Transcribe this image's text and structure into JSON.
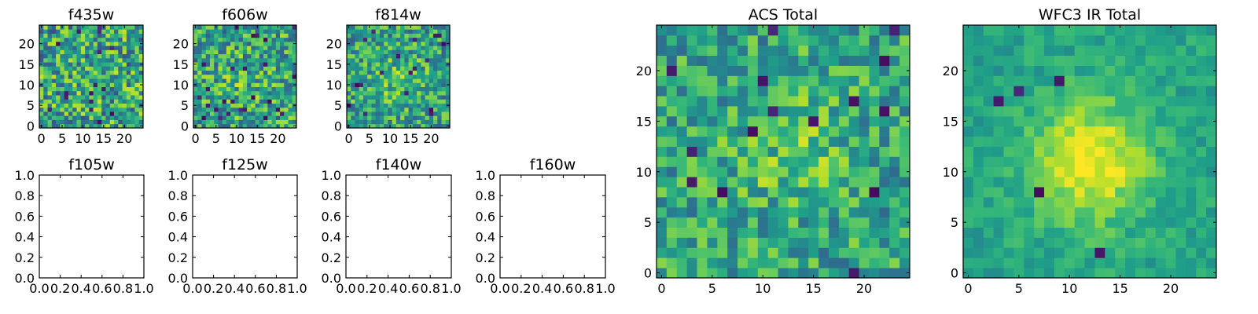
{
  "chart_data": {
    "type": "heatmap",
    "colormap": "viridis",
    "colors": {
      "viridis": [
        "#440154",
        "#482878",
        "#3e4989",
        "#31688e",
        "#26828e",
        "#1f9e89",
        "#35b779",
        "#6ece58",
        "#b5de2b",
        "#fde725"
      ],
      "axes": "#000000",
      "background": "#ffffff"
    },
    "panels": [
      {
        "id": "f435w",
        "title": "f435w",
        "kind": "image",
        "grid": 25,
        "peak": [
          12,
          11
        ],
        "peak_strength": 0.05,
        "noise": 0.9,
        "seed": 11,
        "xlim": [
          -0.5,
          24.5
        ],
        "ylim": [
          -0.5,
          24.5
        ],
        "xticks": [
          0,
          5,
          10,
          15,
          20
        ],
        "yticks": [
          0,
          5,
          10,
          15,
          20
        ]
      },
      {
        "id": "f606w",
        "title": "f606w",
        "kind": "image",
        "grid": 25,
        "peak": [
          12,
          11
        ],
        "peak_strength": 0.15,
        "noise": 0.8,
        "seed": 22,
        "xlim": [
          -0.5,
          24.5
        ],
        "ylim": [
          -0.5,
          24.5
        ],
        "xticks": [
          0,
          5,
          10,
          15,
          20
        ],
        "yticks": [
          0,
          5,
          10,
          15,
          20
        ]
      },
      {
        "id": "f814w",
        "title": "f814w",
        "kind": "image",
        "grid": 25,
        "peak": [
          12,
          11
        ],
        "peak_strength": 0.25,
        "noise": 0.75,
        "seed": 33,
        "xlim": [
          -0.5,
          24.5
        ],
        "ylim": [
          -0.5,
          24.5
        ],
        "xticks": [
          0,
          5,
          10,
          15,
          20
        ],
        "yticks": [
          0,
          5,
          10,
          15,
          20
        ]
      },
      {
        "id": "f105w",
        "title": "f105w",
        "kind": "empty",
        "xlim": [
          0,
          1
        ],
        "ylim": [
          0,
          1
        ],
        "xticks": [
          0.0,
          0.2,
          0.4,
          0.6,
          0.8,
          1.0
        ],
        "yticks": [
          0.0,
          0.2,
          0.4,
          0.6,
          0.8,
          1.0
        ],
        "xtick_labels": [
          "0.0",
          "0.2",
          "0.4",
          "0.6",
          "0.8",
          "1.0"
        ],
        "ytick_labels": [
          "0.0",
          "0.2",
          "0.4",
          "0.6",
          "0.8",
          "1.0"
        ]
      },
      {
        "id": "f125w",
        "title": "f125w",
        "kind": "empty",
        "xlim": [
          0,
          1
        ],
        "ylim": [
          0,
          1
        ],
        "xticks": [
          0.0,
          0.2,
          0.4,
          0.6,
          0.8,
          1.0
        ],
        "yticks": [
          0.0,
          0.2,
          0.4,
          0.6,
          0.8,
          1.0
        ],
        "xtick_labels": [
          "0.0",
          "0.2",
          "0.4",
          "0.6",
          "0.8",
          "1.0"
        ],
        "ytick_labels": [
          "0.0",
          "0.2",
          "0.4",
          "0.6",
          "0.8",
          "1.0"
        ]
      },
      {
        "id": "f140w",
        "title": "f140w",
        "kind": "empty",
        "xlim": [
          0,
          1
        ],
        "ylim": [
          0,
          1
        ],
        "xticks": [
          0.0,
          0.2,
          0.4,
          0.6,
          0.8,
          1.0
        ],
        "yticks": [
          0.0,
          0.2,
          0.4,
          0.6,
          0.8,
          1.0
        ],
        "xtick_labels": [
          "0.0",
          "0.2",
          "0.4",
          "0.6",
          "0.8",
          "1.0"
        ],
        "ytick_labels": [
          "0.0",
          "0.2",
          "0.4",
          "0.6",
          "0.8",
          "1.0"
        ]
      },
      {
        "id": "f160w",
        "title": "f160w",
        "kind": "empty",
        "xlim": [
          0,
          1
        ],
        "ylim": [
          0,
          1
        ],
        "xticks": [
          0.0,
          0.2,
          0.4,
          0.6,
          0.8,
          1.0
        ],
        "yticks": [
          0.0,
          0.2,
          0.4,
          0.6,
          0.8,
          1.0
        ],
        "xtick_labels": [
          "0.0",
          "0.2",
          "0.4",
          "0.6",
          "0.8",
          "1.0"
        ],
        "ytick_labels": [
          "0.0",
          "0.2",
          "0.4",
          "0.6",
          "0.8",
          "1.0"
        ]
      },
      {
        "id": "acs_total",
        "title": "ACS Total",
        "kind": "image",
        "grid": 25,
        "peak": [
          13,
          12
        ],
        "peak_strength": 0.35,
        "noise": 0.65,
        "seed": 44,
        "xlim": [
          -0.5,
          24.5
        ],
        "ylim": [
          -0.5,
          24.5
        ],
        "xticks": [
          0,
          5,
          10,
          15,
          20
        ],
        "yticks": [
          0,
          5,
          10,
          15,
          20
        ]
      },
      {
        "id": "wfc3_ir_total",
        "title": "WFC3 IR Total",
        "kind": "image",
        "grid": 25,
        "peak": [
          12,
          11
        ],
        "peak_strength": 1.0,
        "noise": 0.28,
        "seed": 55,
        "xlim": [
          -0.5,
          24.5
        ],
        "ylim": [
          -0.5,
          24.5
        ],
        "xticks": [
          0,
          5,
          10,
          15,
          20
        ],
        "yticks": [
          0,
          5,
          10,
          15,
          20
        ]
      }
    ]
  }
}
